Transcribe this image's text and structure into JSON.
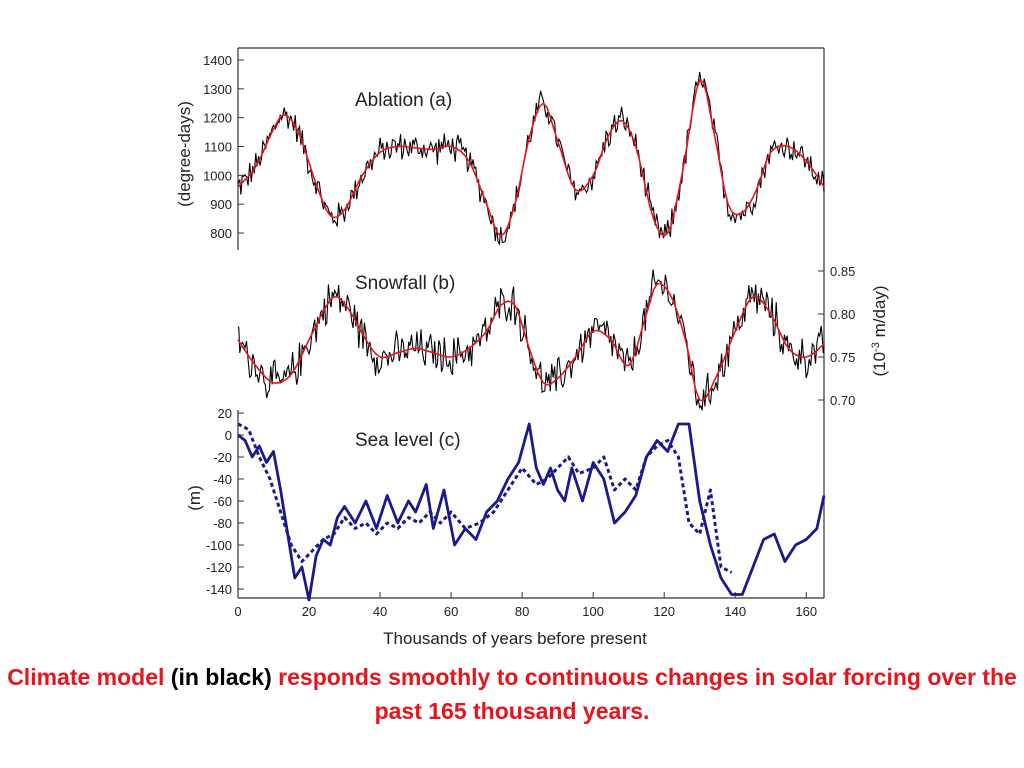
{
  "chart_data": [
    {
      "type": "line",
      "panel_label": "Ablation (a)",
      "ylabel": "(degree-days)",
      "yaxis_side": "left",
      "ylim": [
        700,
        1420
      ],
      "yticks": [
        800,
        900,
        1000,
        1100,
        1200,
        1300,
        1400
      ],
      "xlim": [
        0,
        165
      ],
      "series": [
        {
          "color": "#000000",
          "noisy": true,
          "amplitude": 38,
          "x": [
            0,
            5,
            10,
            13,
            17,
            22,
            26,
            30,
            35,
            40,
            45,
            50,
            55,
            60,
            65,
            70,
            74,
            78,
            82,
            86,
            90,
            95,
            100,
            104,
            108,
            112,
            117,
            121,
            125,
            130,
            134,
            138,
            142,
            146,
            150,
            155,
            160,
            165
          ],
          "y": [
            960,
            1030,
            1160,
            1210,
            1150,
            970,
            860,
            880,
            1000,
            1080,
            1100,
            1095,
            1090,
            1100,
            1050,
            900,
            790,
            900,
            1130,
            1250,
            1120,
            950,
            1000,
            1130,
            1190,
            1100,
            850,
            800,
            1000,
            1330,
            1150,
            900,
            870,
            950,
            1080,
            1100,
            1050,
            960
          ]
        },
        {
          "color": "#e8141c",
          "noisy": false,
          "x": [
            0,
            5,
            10,
            13,
            17,
            22,
            26,
            30,
            35,
            40,
            45,
            50,
            55,
            60,
            65,
            70,
            74,
            78,
            82,
            86,
            90,
            95,
            100,
            104,
            108,
            112,
            117,
            121,
            125,
            130,
            134,
            138,
            142,
            146,
            150,
            155,
            160,
            165
          ],
          "y": [
            960,
            1030,
            1160,
            1210,
            1150,
            970,
            860,
            880,
            1000,
            1080,
            1100,
            1095,
            1090,
            1100,
            1050,
            900,
            790,
            900,
            1130,
            1250,
            1120,
            950,
            1000,
            1130,
            1190,
            1100,
            850,
            800,
            1000,
            1330,
            1150,
            900,
            870,
            950,
            1080,
            1100,
            1050,
            960
          ]
        }
      ]
    },
    {
      "type": "line",
      "panel_label": "Snowfall (b)",
      "ylabel_prefix": "(10",
      "ylabel_sup": "-3",
      "ylabel_suffix": " m/day)",
      "yaxis_side": "right",
      "ylim": [
        0.68,
        0.87
      ],
      "yticks": [
        "0.85",
        "0.80",
        "0.75",
        "0.70"
      ],
      "xlim": [
        0,
        165
      ],
      "series": [
        {
          "color": "#000000",
          "noisy": true,
          "amplitude": 0.018,
          "x": [
            0,
            5,
            10,
            15,
            20,
            25,
            28,
            32,
            36,
            40,
            45,
            50,
            55,
            60,
            65,
            70,
            74,
            78,
            82,
            86,
            90,
            95,
            100,
            105,
            110,
            115,
            118,
            122,
            126,
            130,
            135,
            140,
            145,
            150,
            155,
            160,
            165
          ],
          "y": [
            0.77,
            0.74,
            0.72,
            0.73,
            0.77,
            0.81,
            0.82,
            0.8,
            0.77,
            0.75,
            0.755,
            0.76,
            0.755,
            0.75,
            0.76,
            0.78,
            0.81,
            0.81,
            0.76,
            0.72,
            0.725,
            0.75,
            0.78,
            0.77,
            0.74,
            0.8,
            0.835,
            0.82,
            0.77,
            0.7,
            0.73,
            0.78,
            0.82,
            0.8,
            0.76,
            0.75,
            0.765
          ]
        },
        {
          "color": "#e8141c",
          "noisy": false,
          "x": [
            0,
            5,
            10,
            15,
            20,
            25,
            28,
            32,
            36,
            40,
            45,
            50,
            55,
            60,
            65,
            70,
            74,
            78,
            82,
            86,
            90,
            95,
            100,
            105,
            110,
            115,
            118,
            122,
            126,
            130,
            135,
            140,
            145,
            150,
            155,
            160,
            165
          ],
          "y": [
            0.77,
            0.74,
            0.72,
            0.73,
            0.77,
            0.81,
            0.82,
            0.8,
            0.77,
            0.75,
            0.755,
            0.76,
            0.755,
            0.75,
            0.76,
            0.78,
            0.81,
            0.81,
            0.76,
            0.72,
            0.725,
            0.75,
            0.78,
            0.77,
            0.74,
            0.8,
            0.835,
            0.82,
            0.77,
            0.7,
            0.73,
            0.78,
            0.82,
            0.8,
            0.76,
            0.75,
            0.765
          ]
        }
      ]
    },
    {
      "type": "line",
      "panel_label": "Sea level (c)",
      "ylabel": "(m)",
      "yaxis_side": "left",
      "ylim": [
        -150,
        20
      ],
      "yticks": [
        20,
        0,
        -20,
        -40,
        -60,
        -80,
        -100,
        -120,
        -140
      ],
      "xlim": [
        0,
        165
      ],
      "xticks": [
        0,
        20,
        40,
        60,
        80,
        100,
        120,
        140,
        160
      ],
      "xlabel": "Thousands of years before present",
      "series": [
        {
          "color": "#1a1a8c",
          "style": "solid",
          "x": [
            0,
            2,
            4,
            6,
            8,
            10,
            12,
            14,
            16,
            18,
            20,
            22,
            24,
            26,
            28,
            30,
            33,
            36,
            39,
            42,
            45,
            48,
            50,
            53,
            55,
            58,
            61,
            64,
            67,
            70,
            73,
            76,
            79,
            82,
            84,
            86,
            88,
            90,
            92,
            94,
            97,
            100,
            103,
            106,
            109,
            112,
            115,
            118,
            121,
            124,
            127,
            130,
            133,
            136,
            139,
            142,
            145,
            148,
            151,
            154,
            157,
            160,
            163,
            165
          ],
          "y": [
            0,
            -5,
            -20,
            -10,
            -25,
            -15,
            -50,
            -90,
            -130,
            -120,
            -150,
            -110,
            -95,
            -100,
            -75,
            -65,
            -80,
            -60,
            -85,
            -55,
            -80,
            -60,
            -70,
            -45,
            -85,
            -50,
            -100,
            -85,
            -95,
            -70,
            -60,
            -40,
            -25,
            10,
            -30,
            -45,
            -30,
            -50,
            -60,
            -30,
            -60,
            -25,
            -40,
            -80,
            -70,
            -55,
            -20,
            -5,
            -15,
            10,
            10,
            -60,
            -100,
            -130,
            -145,
            -145,
            -120,
            -95,
            -90,
            -115,
            -100,
            -95,
            -85,
            -55
          ]
        },
        {
          "color": "#1a1a8c",
          "style": "dotted",
          "x": [
            0,
            3,
            6,
            9,
            12,
            15,
            18,
            21,
            24,
            27,
            30,
            33,
            36,
            39,
            42,
            45,
            48,
            51,
            54,
            57,
            60,
            64,
            68,
            72,
            76,
            80,
            84,
            87,
            90,
            93,
            96,
            100,
            103,
            106,
            109,
            112,
            115,
            118,
            121,
            124,
            127,
            130,
            133,
            136,
            139
          ],
          "y": [
            10,
            5,
            -20,
            -40,
            -70,
            -100,
            -115,
            -105,
            -95,
            -90,
            -75,
            -85,
            -80,
            -90,
            -80,
            -85,
            -75,
            -80,
            -70,
            -80,
            -70,
            -85,
            -80,
            -70,
            -50,
            -30,
            -45,
            -40,
            -30,
            -20,
            -35,
            -30,
            -20,
            -50,
            -40,
            -50,
            -20,
            -10,
            -5,
            -20,
            -80,
            -90,
            -50,
            -120,
            -125
          ]
        }
      ]
    }
  ],
  "caption": {
    "part1": "Climate model ",
    "part2": "(in black)",
    "part3": " responds smoothly to continuous changes in solar forcing over the past 165 thousand years."
  }
}
